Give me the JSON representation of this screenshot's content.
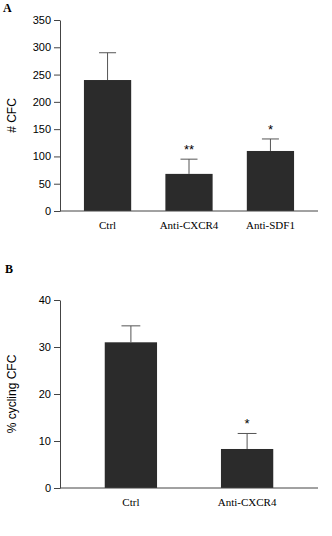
{
  "chart_data": [
    {
      "type": "bar",
      "title": "A",
      "y_label": "# CFC",
      "categories": [
        "Ctrl",
        "Anti-CXCR4",
        "Anti-SDF1"
      ],
      "values": [
        240,
        68,
        110
      ],
      "errors": [
        50,
        27,
        22
      ],
      "significance": [
        null,
        "**",
        "*"
      ],
      "color": "#2b2b2b",
      "ylim": [
        0,
        350
      ],
      "yticks": [
        0,
        50,
        100,
        150,
        200,
        250,
        300,
        350
      ]
    },
    {
      "type": "bar",
      "title": "B",
      "y_label": "% cycling CFC",
      "categories": [
        "Ctrl",
        "Anti-CXCR4"
      ],
      "values": [
        31,
        8.3
      ],
      "errors": [
        3.5,
        3.3
      ],
      "significance": [
        null,
        "*"
      ],
      "color": "#2b2b2b",
      "ylim": [
        0,
        40
      ],
      "yticks": [
        0,
        10,
        20,
        30,
        40
      ]
    }
  ]
}
